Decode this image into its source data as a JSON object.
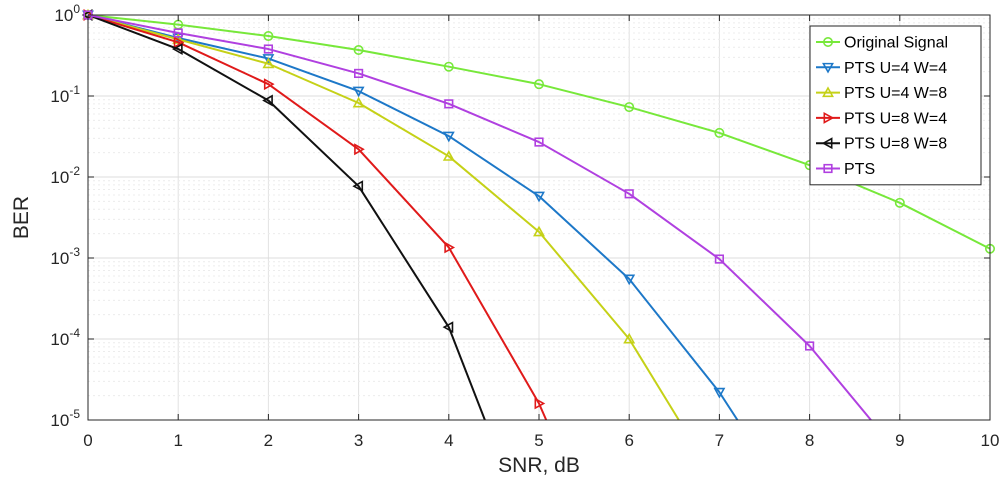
{
  "chart_data": {
    "type": "line",
    "xlabel": "SNR, dB",
    "ylabel": "BER",
    "xlim": [
      0,
      10
    ],
    "ylim": [
      1e-05,
      1
    ],
    "yscale": "log",
    "grid": true,
    "legend_position": "top-right",
    "x_ticks": [
      "0",
      "1",
      "2",
      "3",
      "4",
      "5",
      "6",
      "7",
      "8",
      "9",
      "10"
    ],
    "y_ticks": [
      {
        "base": "10",
        "exp": "0"
      },
      {
        "base": "10",
        "exp": "-1"
      },
      {
        "base": "10",
        "exp": "-2"
      },
      {
        "base": "10",
        "exp": "-3"
      },
      {
        "base": "10",
        "exp": "-4"
      },
      {
        "base": "10",
        "exp": "-5"
      }
    ],
    "series": [
      {
        "name": "Original Signal",
        "color": "#77e83a",
        "marker": "circle",
        "x": [
          0,
          1,
          2,
          3,
          4,
          5,
          6,
          7,
          8,
          9,
          10
        ],
        "y": [
          1,
          0.76,
          0.55,
          0.37,
          0.23,
          0.14,
          0.073,
          0.035,
          0.014,
          0.0048,
          0.0013
        ]
      },
      {
        "name": "PTS U=4 W=4",
        "color": "#1d78c8",
        "marker": "triangle-down",
        "x": [
          0,
          1,
          2,
          3,
          4,
          5,
          6,
          7,
          7.2
        ],
        "y": [
          1,
          0.52,
          0.29,
          0.115,
          0.032,
          0.0058,
          0.00055,
          2.2e-05,
          1e-05
        ]
      },
      {
        "name": "PTS U=4 W=8",
        "color": "#c5d117",
        "marker": "triangle-up",
        "x": [
          0,
          1,
          2,
          3,
          4,
          5,
          6,
          6.55
        ],
        "y": [
          1,
          0.5,
          0.25,
          0.082,
          0.018,
          0.0021,
          0.0001,
          1e-05
        ]
      },
      {
        "name": "PTS U=8 W=4",
        "color": "#e01a1a",
        "marker": "triangle-right",
        "x": [
          0,
          1,
          2,
          3,
          4,
          5,
          5.08
        ],
        "y": [
          1,
          0.46,
          0.14,
          0.022,
          0.00135,
          1.6e-05,
          1e-05
        ]
      },
      {
        "name": "PTS U=8 W=8",
        "color": "#111111",
        "marker": "triangle-left",
        "x": [
          0,
          1,
          2,
          3,
          4,
          4.4
        ],
        "y": [
          1,
          0.38,
          0.088,
          0.0077,
          0.00014,
          1e-05
        ]
      },
      {
        "name": "PTS",
        "color": "#b040e0",
        "marker": "square",
        "x": [
          0,
          1,
          2,
          3,
          4,
          5,
          6,
          7,
          8,
          8.68
        ],
        "y": [
          1,
          0.6,
          0.38,
          0.19,
          0.08,
          0.027,
          0.0062,
          0.00097,
          8.2e-05,
          1e-05
        ]
      }
    ]
  }
}
